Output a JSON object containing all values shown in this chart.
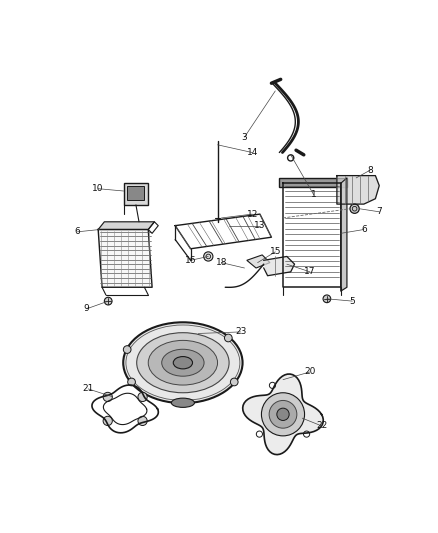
{
  "bg_color": "#ffffff",
  "fig_width": 4.38,
  "fig_height": 5.33,
  "dpi": 100,
  "line_color": "#1a1a1a",
  "label_fontsize": 6.5
}
